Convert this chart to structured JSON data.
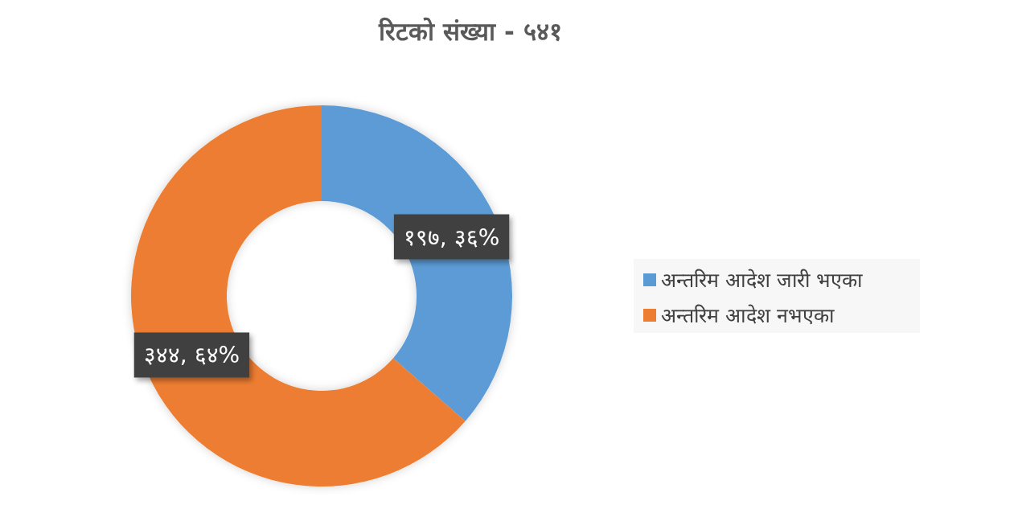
{
  "chart_data": {
    "type": "donut",
    "title": "रिटको संख्या - ५४१",
    "categories": [
      "अन्तरिम आदेश जारी भएका",
      "अन्तरिम आदेश नभएका"
    ],
    "values": [
      197,
      344
    ],
    "colors": [
      "#5b9bd5",
      "#ed7d31"
    ],
    "value_labels": [
      "१९७, ३६%",
      "३४४, ६४%"
    ],
    "legend": "right"
  }
}
